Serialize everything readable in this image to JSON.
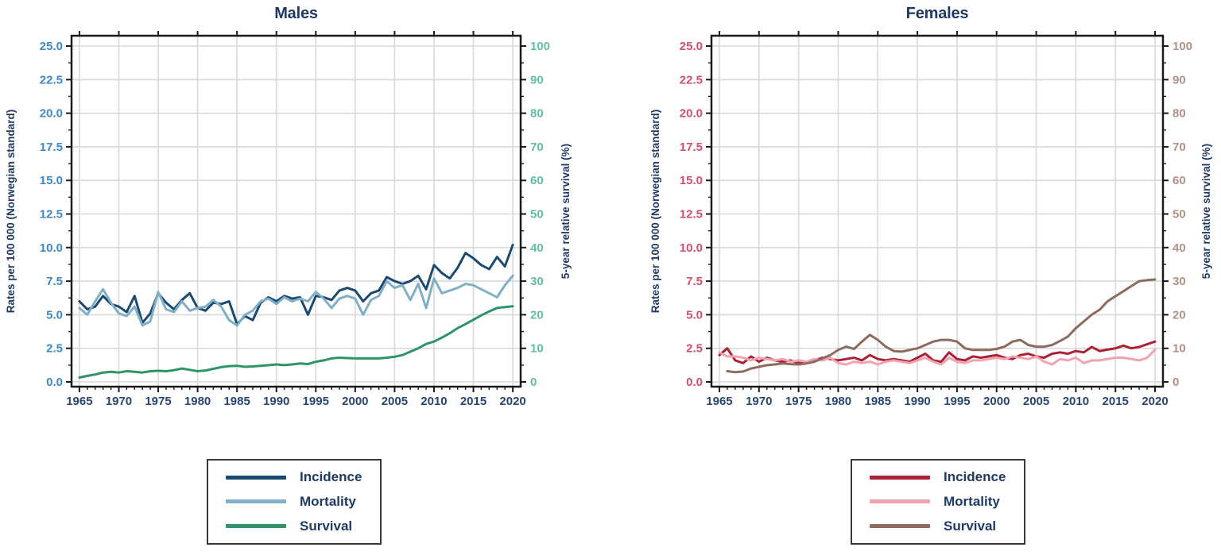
{
  "figure": {
    "background": "#ffffff"
  },
  "chart_data": [
    {
      "type": "line",
      "title": "Males",
      "xlabel": "",
      "ylabel_left": "Rates per 100 000 (Norwegian standard)",
      "ylabel_right": "5-year relative survival (%)",
      "xlim": [
        1964,
        2021
      ],
      "ylim_left": [
        0,
        25
      ],
      "ylim_right": [
        0,
        100
      ],
      "grid": true,
      "legend_position": "bottom",
      "x_tick_labels": [
        "1965",
        "1970",
        "1975",
        "1980",
        "1985",
        "1990",
        "1995",
        "2000",
        "2005",
        "2010",
        "2015",
        "2020"
      ],
      "left_tick_labels": [
        "0.0",
        "2.5",
        "5.0",
        "7.5",
        "10.0",
        "12.5",
        "15.0",
        "17.5",
        "20.0",
        "22.5",
        "25.0"
      ],
      "right_tick_labels": [
        "0",
        "10",
        "20",
        "30",
        "40",
        "50",
        "60",
        "70",
        "80",
        "90",
        "100"
      ],
      "colors": {
        "title": "#1f3a63",
        "x_tick": "#274672",
        "left_tick": "#3f87c5",
        "right_tick": "#5fbf9f",
        "grid": "#d9d9d9",
        "spine": "#1a1a1a"
      },
      "x": [
        1965,
        1966,
        1967,
        1968,
        1969,
        1970,
        1971,
        1972,
        1973,
        1974,
        1975,
        1976,
        1977,
        1978,
        1979,
        1980,
        1981,
        1982,
        1983,
        1984,
        1985,
        1986,
        1987,
        1988,
        1989,
        1990,
        1991,
        1992,
        1993,
        1994,
        1995,
        1996,
        1997,
        1998,
        1999,
        2000,
        2001,
        2002,
        2003,
        2004,
        2005,
        2006,
        2007,
        2008,
        2009,
        2010,
        2011,
        2012,
        2013,
        2014,
        2015,
        2016,
        2017,
        2018,
        2019,
        2020
      ],
      "series": [
        {
          "name": "Incidence",
          "axis": "left",
          "color": "#1b4a70",
          "values": [
            6.0,
            5.4,
            5.6,
            6.4,
            5.8,
            5.6,
            5.2,
            6.4,
            4.4,
            5.1,
            6.6,
            5.9,
            5.4,
            6.1,
            6.6,
            5.5,
            5.3,
            5.9,
            5.8,
            6.0,
            4.3,
            4.9,
            4.6,
            5.9,
            6.3,
            6.0,
            6.4,
            6.2,
            6.3,
            5.0,
            6.4,
            6.3,
            6.1,
            6.8,
            7.0,
            6.8,
            6.0,
            6.6,
            6.8,
            7.8,
            7.5,
            7.3,
            7.5,
            7.9,
            6.9,
            8.7,
            8.1,
            7.7,
            8.5,
            9.6,
            9.2,
            8.7,
            8.4,
            9.3,
            8.6,
            10.2
          ]
        },
        {
          "name": "Mortality",
          "axis": "left",
          "color": "#7fb0c6",
          "values": [
            5.5,
            5.0,
            6.0,
            6.9,
            5.9,
            5.1,
            4.9,
            5.6,
            4.2,
            4.5,
            6.7,
            5.4,
            5.2,
            6.0,
            5.3,
            5.5,
            5.6,
            6.1,
            5.6,
            4.6,
            4.2,
            5.0,
            5.3,
            6.0,
            6.2,
            5.8,
            6.3,
            6.0,
            6.2,
            6.0,
            6.7,
            6.2,
            5.5,
            6.2,
            6.4,
            6.2,
            5.0,
            6.1,
            6.4,
            7.5,
            7.0,
            7.2,
            6.1,
            7.3,
            5.5,
            7.7,
            6.6,
            6.8,
            7.0,
            7.3,
            7.2,
            6.9,
            6.6,
            6.3,
            7.2,
            7.9
          ]
        },
        {
          "name": "Survival",
          "axis": "right",
          "color": "#2f9468",
          "values": [
            1.3,
            1.8,
            2.2,
            2.8,
            3.0,
            2.8,
            3.2,
            3.0,
            2.8,
            3.2,
            3.3,
            3.2,
            3.5,
            4.0,
            3.6,
            3.2,
            3.4,
            3.9,
            4.4,
            4.7,
            4.8,
            4.5,
            4.6,
            4.8,
            5.0,
            5.2,
            5.0,
            5.2,
            5.5,
            5.3,
            6.0,
            6.4,
            7.0,
            7.2,
            7.1,
            7.0,
            7.0,
            7.0,
            7.0,
            7.2,
            7.5,
            8.0,
            9.0,
            10.0,
            11.3,
            12.0,
            13.2,
            14.5,
            16.0,
            17.2,
            18.5,
            19.8,
            21.0,
            22.0,
            22.3,
            22.5
          ]
        }
      ]
    },
    {
      "type": "line",
      "title": "Females",
      "xlabel": "",
      "ylabel_left": "Rates per 100 000 (Norwegian standard)",
      "ylabel_right": "5-year relative survival (%)",
      "xlim": [
        1964,
        2021
      ],
      "ylim_left": [
        0,
        25
      ],
      "ylim_right": [
        0,
        100
      ],
      "grid": true,
      "legend_position": "bottom",
      "x_tick_labels": [
        "1965",
        "1970",
        "1975",
        "1980",
        "1985",
        "1990",
        "1995",
        "2000",
        "2005",
        "2010",
        "2015",
        "2020"
      ],
      "left_tick_labels": [
        "0.0",
        "2.5",
        "5.0",
        "7.5",
        "10.0",
        "12.5",
        "15.0",
        "17.5",
        "20.0",
        "22.5",
        "25.0"
      ],
      "right_tick_labels": [
        "0",
        "10",
        "20",
        "30",
        "40",
        "50",
        "60",
        "70",
        "80",
        "90",
        "100"
      ],
      "colors": {
        "title": "#1f3a63",
        "x_tick": "#274672",
        "left_tick": "#d14f6d",
        "right_tick": "#b39088",
        "grid": "#d9d9d9",
        "spine": "#1a1a1a"
      },
      "x": [
        1965,
        1966,
        1967,
        1968,
        1969,
        1970,
        1971,
        1972,
        1973,
        1974,
        1975,
        1976,
        1977,
        1978,
        1979,
        1980,
        1981,
        1982,
        1983,
        1984,
        1985,
        1986,
        1987,
        1988,
        1989,
        1990,
        1991,
        1992,
        1993,
        1994,
        1995,
        1996,
        1997,
        1998,
        1999,
        2000,
        2001,
        2002,
        2003,
        2004,
        2005,
        2006,
        2007,
        2008,
        2009,
        2010,
        2011,
        2012,
        2013,
        2014,
        2015,
        2016,
        2017,
        2018,
        2019,
        2020
      ],
      "series": [
        {
          "name": "Incidence",
          "axis": "left",
          "color": "#ab2136",
          "values": [
            2.0,
            2.5,
            1.6,
            1.4,
            1.9,
            1.5,
            1.8,
            1.6,
            1.5,
            1.6,
            1.4,
            1.5,
            1.6,
            1.8,
            1.7,
            1.6,
            1.7,
            1.8,
            1.6,
            2.0,
            1.7,
            1.6,
            1.7,
            1.6,
            1.5,
            1.8,
            2.1,
            1.6,
            1.5,
            2.2,
            1.7,
            1.6,
            1.9,
            1.8,
            1.9,
            2.0,
            1.8,
            1.7,
            2.0,
            2.1,
            1.9,
            1.8,
            2.1,
            2.2,
            2.1,
            2.3,
            2.2,
            2.6,
            2.3,
            2.4,
            2.5,
            2.7,
            2.5,
            2.6,
            2.8,
            3.0
          ]
        },
        {
          "name": "Mortality",
          "axis": "left",
          "color": "#f2a3b0",
          "values": [
            2.2,
            1.9,
            1.9,
            1.8,
            1.6,
            1.8,
            1.7,
            1.6,
            1.7,
            1.5,
            1.6,
            1.5,
            1.7,
            1.6,
            1.8,
            1.4,
            1.3,
            1.5,
            1.4,
            1.5,
            1.3,
            1.5,
            1.6,
            1.5,
            1.4,
            1.6,
            1.8,
            1.5,
            1.3,
            1.8,
            1.5,
            1.4,
            1.6,
            1.6,
            1.7,
            1.8,
            1.7,
            1.9,
            1.8,
            1.7,
            1.9,
            1.5,
            1.3,
            1.7,
            1.6,
            1.8,
            1.4,
            1.6,
            1.6,
            1.7,
            1.8,
            1.8,
            1.7,
            1.6,
            1.8,
            2.4
          ]
        },
        {
          "name": "Survival",
          "axis": "right",
          "color": "#8d6b5e",
          "values": [
            null,
            3.2,
            2.9,
            3.1,
            4.0,
            4.5,
            5.0,
            5.2,
            5.5,
            5.3,
            5.2,
            5.5,
            6.0,
            7.0,
            8.0,
            9.5,
            10.5,
            9.8,
            12.0,
            14.0,
            12.5,
            10.5,
            9.2,
            9.0,
            9.5,
            10.0,
            11.0,
            12.0,
            12.5,
            12.5,
            12.0,
            10.0,
            9.5,
            9.5,
            9.5,
            9.8,
            10.5,
            12.0,
            12.5,
            11.0,
            10.5,
            10.5,
            11.0,
            12.2,
            13.5,
            16.0,
            18.0,
            20.0,
            21.5,
            24.0,
            25.5,
            27.0,
            28.5,
            30.0,
            30.3,
            30.5
          ]
        }
      ]
    }
  ]
}
